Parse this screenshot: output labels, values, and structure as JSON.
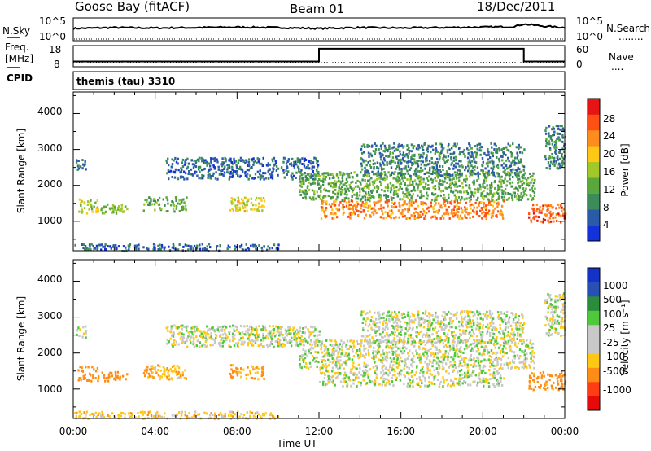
{
  "header": {
    "station": "Goose Bay (fitACF)",
    "beam": "Beam 01",
    "date": "18/Dec/2011"
  },
  "nsky_panel": {
    "left_label": "N.Sky",
    "left_ticks": [
      "10^5",
      "10^0"
    ],
    "right_ticks": [
      "10^5",
      "10^0"
    ],
    "right_label": "N.Search",
    "right_legend_dots": "........"
  },
  "freq_panel": {
    "left_label_line1": "Freq.",
    "left_label_line2": "[MHz]",
    "left_ticks": [
      "18",
      "8"
    ],
    "right_ticks": [
      "60",
      "0"
    ],
    "right_label": "Nave",
    "right_legend_dots": "...."
  },
  "cpid_panel": {
    "label": "CPID",
    "value": "themis (tau) 3310"
  },
  "x_axis": {
    "ticks": [
      "00:00",
      "04:00",
      "08:00",
      "12:00",
      "16:00",
      "20:00",
      "00:00"
    ],
    "label": "Time UT"
  },
  "power_panel": {
    "ylabel": "Slant Range [km]",
    "yticks": [
      "4000",
      "3000",
      "2000",
      "1000"
    ],
    "colorbar_label": "Power [dB]",
    "colorbar_ticks": [
      "28",
      "24",
      "20",
      "16",
      "12",
      "8",
      "4"
    ]
  },
  "velocity_panel": {
    "ylabel": "Slant Range [km]",
    "yticks": [
      "4000",
      "3000",
      "2000",
      "1000"
    ],
    "colorbar_label": "Velocity [m s⁻¹]",
    "colorbar_ticks": [
      "1000",
      "500",
      "100",
      "25",
      "-25",
      "-100",
      "-500",
      "-1000"
    ]
  },
  "colors": {
    "power_scale": [
      "#1432dc",
      "#2a5aa8",
      "#3c8c5a",
      "#5aa83c",
      "#a0c828",
      "#ffc814",
      "#ff8c1e",
      "#ff5014",
      "#e61414"
    ],
    "velocity_scale": [
      "#1432c8",
      "#2850b4",
      "#2a8c3c",
      "#50c83c",
      "#c8c8c8",
      "#c8c8c8",
      "#ffc814",
      "#ff8c14",
      "#ff3c14",
      "#e60a0a"
    ]
  },
  "chart_data": [
    {
      "type": "line",
      "title": "N.Sky / N.Search",
      "x_hours": [
        0,
        2,
        4,
        6,
        8,
        10,
        12,
        14,
        16,
        18,
        20,
        21.5,
        22,
        23,
        24
      ],
      "series": [
        {
          "name": "N.Sky",
          "values_log10": [
            2.6,
            2.8,
            2.7,
            2.8,
            2.9,
            2.8,
            2.6,
            2.8,
            2.7,
            2.8,
            2.9,
            3.0,
            3.6,
            3.1,
            2.8
          ]
        },
        {
          "name": "N.Search",
          "values_log10": [
            0,
            0,
            0,
            0,
            0,
            0,
            0,
            0,
            0,
            0,
            0,
            0,
            0,
            0,
            0
          ]
        }
      ],
      "ylim_log10": [
        0,
        5
      ]
    },
    {
      "type": "line",
      "title": "Freq. / Nave",
      "series": [
        {
          "name": "Freq. [MHz]",
          "x_hours": [
            0,
            12,
            12,
            22,
            22,
            24
          ],
          "values": [
            10.5,
            10.5,
            16.5,
            16.5,
            10.5,
            10.5
          ]
        },
        {
          "name": "Nave",
          "x_hours": [
            0,
            24
          ],
          "values": [
            12,
            12
          ]
        }
      ],
      "ylim_freq": [
        8,
        18
      ],
      "ylim_nave": [
        0,
        60
      ]
    },
    {
      "type": "heatmap",
      "title": "Power",
      "xlabel": "Time UT",
      "ylabel": "Slant Range [km]",
      "xlim_hours": [
        0,
        24
      ],
      "ylim_km": [
        180,
        4600
      ],
      "zlim_dB": [
        0,
        32
      ],
      "echo_regions": [
        {
          "t": [
            0.0,
            10.0
          ],
          "r": [
            200,
            400
          ],
          "dB": 6
        },
        {
          "t": [
            0.2,
            1.2
          ],
          "r": [
            1250,
            1650
          ],
          "dB": 16
        },
        {
          "t": [
            1.3,
            2.6
          ],
          "r": [
            1250,
            1500
          ],
          "dB": 14
        },
        {
          "t": [
            3.4,
            5.5
          ],
          "r": [
            1300,
            1700
          ],
          "dB": 12
        },
        {
          "t": [
            7.6,
            9.3
          ],
          "r": [
            1300,
            1700
          ],
          "dB": 18
        },
        {
          "t": [
            0.1,
            0.6
          ],
          "r": [
            2450,
            2800
          ],
          "dB": 6
        },
        {
          "t": [
            4.5,
            12.0
          ],
          "r": [
            2200,
            2800
          ],
          "dB": 6
        },
        {
          "t": [
            11.0,
            22.5
          ],
          "r": [
            1600,
            2400
          ],
          "dB": 12
        },
        {
          "t": [
            12.0,
            21.0
          ],
          "r": [
            1100,
            1600
          ],
          "dB": 24
        },
        {
          "t": [
            14.0,
            22.0
          ],
          "r": [
            2300,
            3200
          ],
          "dB": 8
        },
        {
          "t": [
            22.2,
            24.0
          ],
          "r": [
            1000,
            1500
          ],
          "dB": 26
        },
        {
          "t": [
            23.0,
            24.0
          ],
          "r": [
            2500,
            3700
          ],
          "dB": 8
        }
      ]
    },
    {
      "type": "heatmap",
      "title": "Velocity",
      "xlabel": "Time UT",
      "ylabel": "Slant Range [km]",
      "xlim_hours": [
        0,
        24
      ],
      "ylim_km": [
        180,
        4600
      ],
      "zlim_m_s": [
        -1000,
        1000
      ],
      "echo_regions": [
        {
          "t": [
            0.0,
            10.0
          ],
          "r": [
            200,
            400
          ],
          "v": -60
        },
        {
          "t": [
            0.2,
            1.2
          ],
          "r": [
            1250,
            1650
          ],
          "v": -300
        },
        {
          "t": [
            1.3,
            2.6
          ],
          "r": [
            1250,
            1500
          ],
          "v": -200
        },
        {
          "t": [
            3.4,
            5.5
          ],
          "r": [
            1300,
            1700
          ],
          "v": -80
        },
        {
          "t": [
            7.6,
            9.3
          ],
          "r": [
            1300,
            1700
          ],
          "v": -120
        },
        {
          "t": [
            0.1,
            0.6
          ],
          "r": [
            2450,
            2800
          ],
          "v": 0
        },
        {
          "t": [
            4.5,
            12.0
          ],
          "r": [
            2200,
            2800
          ],
          "v": 0
        },
        {
          "t": [
            11.0,
            22.5
          ],
          "r": [
            1600,
            2400
          ],
          "v": 0
        },
        {
          "t": [
            12.0,
            21.0
          ],
          "r": [
            1100,
            1600
          ],
          "v": 0
        },
        {
          "t": [
            14.0,
            22.0
          ],
          "r": [
            2300,
            3200
          ],
          "v": 0
        },
        {
          "t": [
            22.2,
            24.0
          ],
          "r": [
            1000,
            1500
          ],
          "v": -150
        },
        {
          "t": [
            23.0,
            24.0
          ],
          "r": [
            2500,
            3700
          ],
          "v": 0
        }
      ]
    }
  ]
}
